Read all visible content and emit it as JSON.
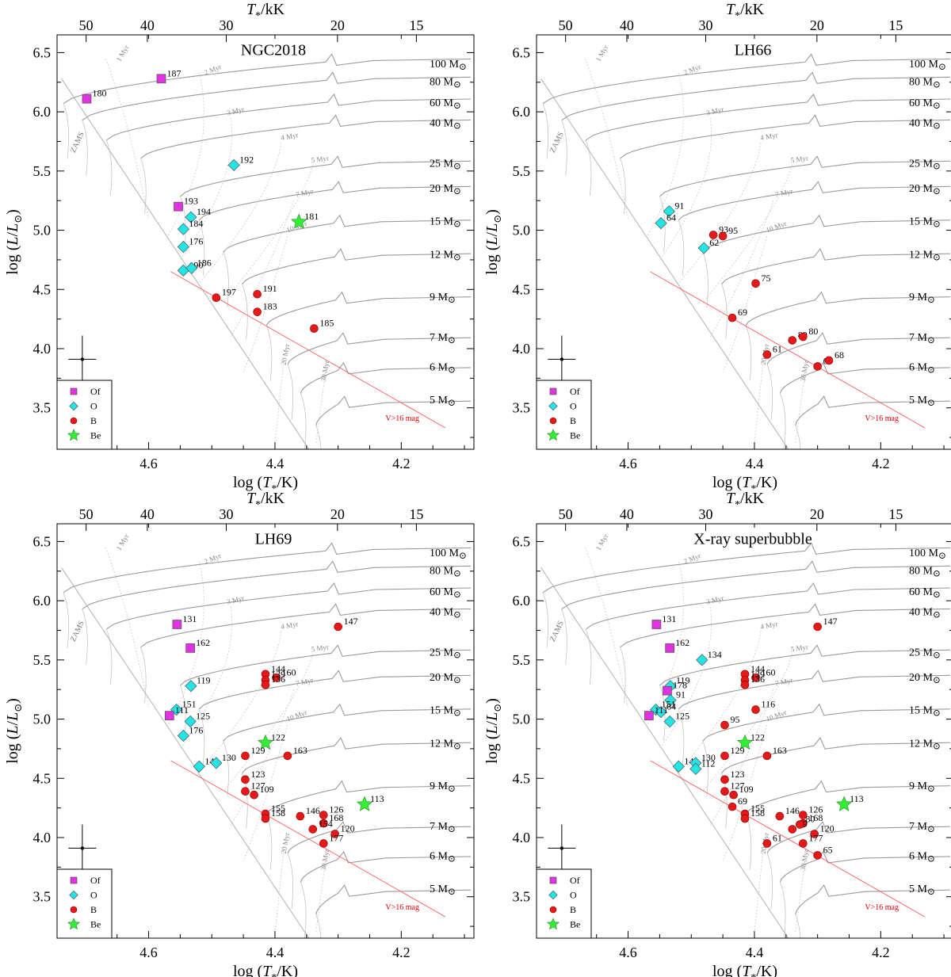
{
  "figure": {
    "xlabel_parts": [
      "log (",
      "T",
      "*",
      "/K)"
    ],
    "ylabel_parts": [
      "log (",
      "L",
      "/",
      "L",
      "⊙",
      ")"
    ],
    "toplabel_parts": [
      "T",
      "*",
      "/kK"
    ],
    "x_ticks": [
      4.6,
      4.4,
      4.2
    ],
    "x_tick_labels": [
      "4.6",
      "4.4",
      "4.2"
    ],
    "x_minor_ticks": [
      4.7,
      4.65,
      4.55,
      4.5,
      4.45,
      4.35,
      4.3,
      4.25,
      4.15,
      4.1
    ],
    "y_ticks": [
      3.5,
      4.0,
      4.5,
      5.0,
      5.5,
      6.0,
      6.5
    ],
    "y_tick_labels": [
      "3.5",
      "4.0",
      "4.5",
      "5.0",
      "5.5",
      "6.0",
      "6.5"
    ],
    "top_ticks_kK": [
      50,
      40,
      30,
      20,
      15
    ],
    "top_tick_labels": [
      "50",
      "40",
      "30",
      "20",
      "15"
    ],
    "xlim": [
      4.745,
      4.085
    ],
    "ylim": [
      3.15,
      6.65
    ],
    "legend": {
      "entries": [
        {
          "key": "Of",
          "label": "Of",
          "marker": "square",
          "color": "#e032e0"
        },
        {
          "key": "O",
          "label": "O",
          "marker": "diamond",
          "color": "#22e6e6"
        },
        {
          "key": "B",
          "label": "B",
          "marker": "circle",
          "color": "#e41a1a"
        },
        {
          "key": "Be",
          "label": "Be",
          "marker": "star",
          "color": "#33ee33"
        }
      ]
    },
    "error_bar": {
      "logT": 4.705,
      "logL": 3.91,
      "dlogT": 0.022,
      "dlogL": 0.2
    },
    "zams_label": "ZAMS",
    "mag_limit_label": "V>16 mag",
    "mass_tracks": [
      {
        "mass": 100,
        "label": "100 M",
        "logL_label": 6.41
      },
      {
        "mass": 80,
        "label": "80 M",
        "logL_label": 6.26
      },
      {
        "mass": 60,
        "label": "60 M",
        "logL_label": 6.08
      },
      {
        "mass": 40,
        "label": "40 M",
        "logL_label": 5.91
      },
      {
        "mass": 25,
        "label": "25 M",
        "logL_label": 5.57
      },
      {
        "mass": 20,
        "label": "20 M",
        "logL_label": 5.36
      },
      {
        "mass": 15,
        "label": "15 M",
        "logL_label": 5.08
      },
      {
        "mass": 12,
        "label": "12 M",
        "logL_label": 4.8
      },
      {
        "mass": 9,
        "label": "9 M",
        "logL_label": 4.44
      },
      {
        "mass": 7,
        "label": "7 M",
        "logL_label": 4.1
      },
      {
        "mass": 6,
        "label": "6 M",
        "logL_label": 3.85
      },
      {
        "mass": 5,
        "label": "5 M",
        "logL_label": 3.57
      }
    ],
    "isochrones": [
      {
        "label": "1 Myr",
        "logT": 4.645,
        "logL": 6.42,
        "angle": -60
      },
      {
        "label": "2 Myr",
        "logT": 4.51,
        "logL": 6.31,
        "angle": -22
      },
      {
        "label": "3 Myr",
        "logT": 4.475,
        "logL": 5.97,
        "angle": -14
      },
      {
        "label": "4 Myr",
        "logT": 4.39,
        "logL": 5.76,
        "angle": -10
      },
      {
        "label": "5 Myr",
        "logT": 4.342,
        "logL": 5.57,
        "angle": -8
      },
      {
        "label": "7 Myr",
        "logT": 4.366,
        "logL": 5.28,
        "angle": -12
      },
      {
        "label": "10 Myr",
        "logT": 4.38,
        "logL": 4.98,
        "angle": -20
      },
      {
        "label": "20 Myr",
        "logT": 4.383,
        "logL": 3.86,
        "angle": -80
      },
      {
        "label": "30 Myr",
        "logT": 4.32,
        "logL": 3.72,
        "angle": -80
      }
    ]
  },
  "chart_data": [
    {
      "type": "scatter",
      "title": "NGC2018",
      "xlabel": "log (T*/K)",
      "ylabel": "log (L/L⊙)",
      "toplabel": "T*/kK",
      "points": [
        {
          "id": "187",
          "class": "Of",
          "logT": 4.58,
          "logL": 6.28
        },
        {
          "id": "180",
          "class": "Of",
          "logT": 4.698,
          "logL": 6.11
        },
        {
          "id": "192",
          "class": "O",
          "logT": 4.465,
          "logL": 5.55
        },
        {
          "id": "193",
          "class": "Of",
          "logT": 4.553,
          "logL": 5.2
        },
        {
          "id": "194",
          "class": "O",
          "logT": 4.533,
          "logL": 5.11
        },
        {
          "id": "184",
          "class": "O",
          "logT": 4.545,
          "logL": 5.01
        },
        {
          "id": "181",
          "class": "Be",
          "logT": 4.362,
          "logL": 5.07
        },
        {
          "id": "176",
          "class": "O",
          "logT": 4.545,
          "logL": 4.86
        },
        {
          "id": "190",
          "class": "O",
          "logT": 4.545,
          "logL": 4.66
        },
        {
          "id": "186",
          "class": "O",
          "logT": 4.532,
          "logL": 4.68
        },
        {
          "id": "197",
          "class": "B",
          "logT": 4.493,
          "logL": 4.43
        },
        {
          "id": "191",
          "class": "B",
          "logT": 4.428,
          "logL": 4.46
        },
        {
          "id": "183",
          "class": "B",
          "logT": 4.428,
          "logL": 4.31
        },
        {
          "id": "185",
          "class": "B",
          "logT": 4.338,
          "logL": 4.17
        }
      ]
    },
    {
      "type": "scatter",
      "title": "LH66",
      "xlabel": "log (T*/K)",
      "ylabel": "log (L/L⊙)",
      "toplabel": "T*/kK",
      "points": [
        {
          "id": "91",
          "class": "O",
          "logT": 4.535,
          "logL": 5.16
        },
        {
          "id": "64",
          "class": "O",
          "logT": 4.548,
          "logL": 5.06
        },
        {
          "id": "93",
          "class": "B",
          "logT": 4.465,
          "logL": 4.96
        },
        {
          "id": "95",
          "class": "B",
          "logT": 4.45,
          "logL": 4.95
        },
        {
          "id": "62",
          "class": "O",
          "logT": 4.48,
          "logL": 4.85
        },
        {
          "id": "75",
          "class": "B",
          "logT": 4.398,
          "logL": 4.55
        },
        {
          "id": "69",
          "class": "B",
          "logT": 4.435,
          "logL": 4.26
        },
        {
          "id": "89",
          "class": "B",
          "logT": 4.34,
          "logL": 4.07
        },
        {
          "id": "80",
          "class": "B",
          "logT": 4.323,
          "logL": 4.1
        },
        {
          "id": "61",
          "class": "B",
          "logT": 4.38,
          "logL": 3.95
        },
        {
          "id": "65",
          "class": "B",
          "logT": 4.3,
          "logL": 3.85
        },
        {
          "id": "68",
          "class": "B",
          "logT": 4.282,
          "logL": 3.9
        }
      ]
    },
    {
      "type": "scatter",
      "title": "LH69",
      "xlabel": "log (T*/K)",
      "ylabel": "log (L/L⊙)",
      "toplabel": "T*/kK",
      "points": [
        {
          "id": "131",
          "class": "Of",
          "logT": 4.555,
          "logL": 5.8
        },
        {
          "id": "147",
          "class": "B",
          "logT": 4.3,
          "logL": 5.78
        },
        {
          "id": "162",
          "class": "Of",
          "logT": 4.534,
          "logL": 5.6
        },
        {
          "id": "144",
          "class": "B",
          "logT": 4.415,
          "logL": 5.38
        },
        {
          "id": "160",
          "class": "B",
          "logT": 4.398,
          "logL": 5.35
        },
        {
          "id": "139",
          "class": "B",
          "logT": 4.415,
          "logL": 5.33
        },
        {
          "id": "136",
          "class": "B",
          "logT": 4.415,
          "logL": 5.29
        },
        {
          "id": "119",
          "class": "O",
          "logT": 4.533,
          "logL": 5.28
        },
        {
          "id": "151",
          "class": "O",
          "logT": 4.556,
          "logL": 5.08
        },
        {
          "id": "111",
          "class": "Of",
          "logT": 4.567,
          "logL": 5.03
        },
        {
          "id": "125",
          "class": "O",
          "logT": 4.534,
          "logL": 4.98
        },
        {
          "id": "176",
          "class": "O",
          "logT": 4.545,
          "logL": 4.86
        },
        {
          "id": "122",
          "class": "Be",
          "logT": 4.415,
          "logL": 4.8
        },
        {
          "id": "129",
          "class": "B",
          "logT": 4.447,
          "logL": 4.69
        },
        {
          "id": "163",
          "class": "B",
          "logT": 4.38,
          "logL": 4.69
        },
        {
          "id": "149",
          "class": "O",
          "logT": 4.52,
          "logL": 4.6
        },
        {
          "id": "130",
          "class": "O",
          "logT": 4.493,
          "logL": 4.63
        },
        {
          "id": "123",
          "class": "B",
          "logT": 4.447,
          "logL": 4.49
        },
        {
          "id": "127",
          "class": "B",
          "logT": 4.447,
          "logL": 4.39
        },
        {
          "id": "109",
          "class": "B",
          "logT": 4.433,
          "logL": 4.36
        },
        {
          "id": "113",
          "class": "Be",
          "logT": 4.258,
          "logL": 4.28
        },
        {
          "id": "155",
          "class": "B",
          "logT": 4.415,
          "logL": 4.2
        },
        {
          "id": "158",
          "class": "B",
          "logT": 4.415,
          "logL": 4.16
        },
        {
          "id": "146",
          "class": "B",
          "logT": 4.36,
          "logL": 4.18
        },
        {
          "id": "126",
          "class": "B",
          "logT": 4.323,
          "logL": 4.19
        },
        {
          "id": "168",
          "class": "B",
          "logT": 4.323,
          "logL": 4.12
        },
        {
          "id": "154",
          "class": "B",
          "logT": 4.34,
          "logL": 4.07
        },
        {
          "id": "120",
          "class": "B",
          "logT": 4.305,
          "logL": 4.03
        },
        {
          "id": "177",
          "class": "B",
          "logT": 4.323,
          "logL": 3.95
        }
      ]
    },
    {
      "type": "scatter",
      "title": "X-ray superbubble",
      "xlabel": "log (T*/K)",
      "ylabel": "log (L/L⊙)",
      "toplabel": "T*/kK",
      "points": [
        {
          "id": "131",
          "class": "Of",
          "logT": 4.555,
          "logL": 5.8
        },
        {
          "id": "147",
          "class": "B",
          "logT": 4.3,
          "logL": 5.78
        },
        {
          "id": "162",
          "class": "Of",
          "logT": 4.534,
          "logL": 5.6
        },
        {
          "id": "134",
          "class": "O",
          "logT": 4.483,
          "logL": 5.5
        },
        {
          "id": "144",
          "class": "B",
          "logT": 4.415,
          "logL": 5.38
        },
        {
          "id": "160",
          "class": "B",
          "logT": 4.398,
          "logL": 5.35
        },
        {
          "id": "139",
          "class": "B",
          "logT": 4.415,
          "logL": 5.33
        },
        {
          "id": "136",
          "class": "B",
          "logT": 4.415,
          "logL": 5.29
        },
        {
          "id": "119",
          "class": "O",
          "logT": 4.533,
          "logL": 5.28
        },
        {
          "id": "178",
          "class": "Of",
          "logT": 4.538,
          "logL": 5.24
        },
        {
          "id": "91",
          "class": "O",
          "logT": 4.533,
          "logL": 5.16
        },
        {
          "id": "116",
          "class": "B",
          "logT": 4.398,
          "logL": 5.08
        },
        {
          "id": "151",
          "class": "O",
          "logT": 4.556,
          "logL": 5.08
        },
        {
          "id": "64",
          "class": "O",
          "logT": 4.548,
          "logL": 5.06
        },
        {
          "id": "111",
          "class": "Of",
          "logT": 4.567,
          "logL": 5.03
        },
        {
          "id": "125",
          "class": "O",
          "logT": 4.534,
          "logL": 4.98
        },
        {
          "id": "95",
          "class": "B",
          "logT": 4.447,
          "logL": 4.95
        },
        {
          "id": "122",
          "class": "Be",
          "logT": 4.415,
          "logL": 4.8
        },
        {
          "id": "129",
          "class": "B",
          "logT": 4.447,
          "logL": 4.69
        },
        {
          "id": "163",
          "class": "B",
          "logT": 4.38,
          "logL": 4.69
        },
        {
          "id": "149",
          "class": "O",
          "logT": 4.52,
          "logL": 4.6
        },
        {
          "id": "130",
          "class": "O",
          "logT": 4.493,
          "logL": 4.63
        },
        {
          "id": "112",
          "class": "O",
          "logT": 4.493,
          "logL": 4.58
        },
        {
          "id": "123",
          "class": "B",
          "logT": 4.447,
          "logL": 4.49
        },
        {
          "id": "127",
          "class": "B",
          "logT": 4.447,
          "logL": 4.39
        },
        {
          "id": "109",
          "class": "B",
          "logT": 4.433,
          "logL": 4.36
        },
        {
          "id": "113",
          "class": "Be",
          "logT": 4.258,
          "logL": 4.28
        },
        {
          "id": "69",
          "class": "B",
          "logT": 4.435,
          "logL": 4.26
        },
        {
          "id": "155",
          "class": "B",
          "logT": 4.415,
          "logL": 4.2
        },
        {
          "id": "158",
          "class": "B",
          "logT": 4.415,
          "logL": 4.16
        },
        {
          "id": "146",
          "class": "B",
          "logT": 4.36,
          "logL": 4.18
        },
        {
          "id": "126",
          "class": "B",
          "logT": 4.323,
          "logL": 4.19
        },
        {
          "id": "168",
          "class": "B",
          "logT": 4.323,
          "logL": 4.12
        },
        {
          "id": "89",
          "class": "B",
          "logT": 4.34,
          "logL": 4.07
        },
        {
          "id": "80",
          "class": "B",
          "logT": 4.328,
          "logL": 4.11
        },
        {
          "id": "120",
          "class": "B",
          "logT": 4.305,
          "logL": 4.03
        },
        {
          "id": "61",
          "class": "B",
          "logT": 4.38,
          "logL": 3.95
        },
        {
          "id": "177",
          "class": "B",
          "logT": 4.323,
          "logL": 3.95
        },
        {
          "id": "65",
          "class": "B",
          "logT": 4.3,
          "logL": 3.85
        }
      ]
    }
  ]
}
